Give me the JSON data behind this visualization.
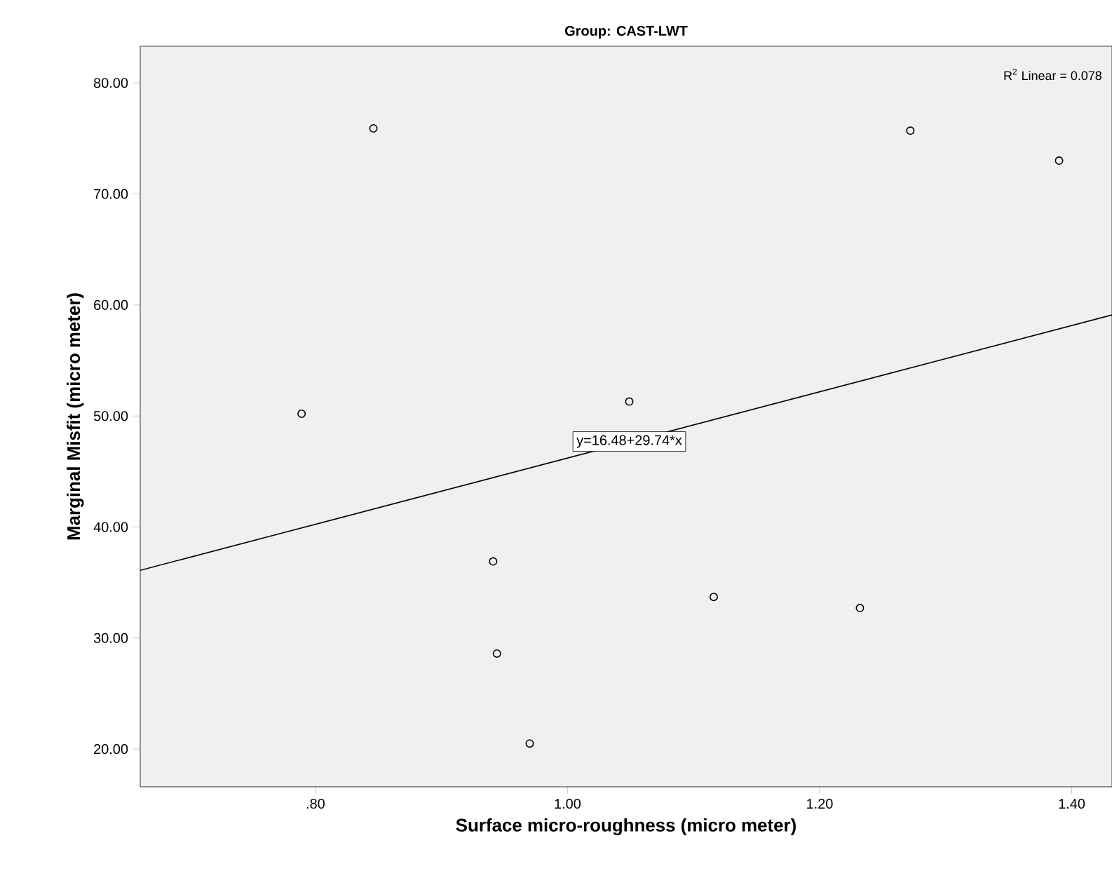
{
  "chart_data": {
    "type": "scatter",
    "title": "Group: CAST-LWT",
    "xlabel": "Surface micro-roughness (micro meter)",
    "ylabel": "Marginal Misfit (micro meter)",
    "series": [
      {
        "color": "#000000",
        "marker": "circle",
        "x": [
          0.846,
          0.789,
          0.941,
          0.944,
          0.97,
          1.049,
          1.116,
          1.232,
          1.272,
          1.39
        ],
        "values": [
          75.9,
          50.2,
          36.9,
          28.6,
          20.5,
          51.3,
          33.7,
          32.7,
          75.7,
          73.0
        ]
      },
      {
        "type": "line",
        "color": "#000000",
        "marker": "none",
        "line_style": "solid",
        "x": [
          0.661,
          1.432
        ],
        "values": [
          36.1,
          59.1
        ]
      }
    ],
    "xlim": [
      0.661,
      1.432
    ],
    "ylim": [
      16.6,
      83.3
    ],
    "xticks": [
      {
        "value": 0.8,
        "label": ".80"
      },
      {
        "value": 1.0,
        "label": "1.00"
      },
      {
        "value": 1.2,
        "label": "1.20"
      },
      {
        "value": 1.4,
        "label": "1.40"
      }
    ],
    "yticks": [
      {
        "value": 20,
        "label": "20.00"
      },
      {
        "value": 30,
        "label": "30.00"
      },
      {
        "value": 40,
        "label": "40.00"
      },
      {
        "value": 50,
        "label": "50.00"
      },
      {
        "value": 60,
        "label": "60.00"
      },
      {
        "value": 70,
        "label": "70.00"
      },
      {
        "value": 80,
        "label": "80.00"
      }
    ],
    "grid": false,
    "annotations": [
      {
        "text": "y=16.48+29.74*x",
        "x": 1.049,
        "y": 47.7
      },
      "R$^{2}$ Linear = 0.078"
    ]
  }
}
